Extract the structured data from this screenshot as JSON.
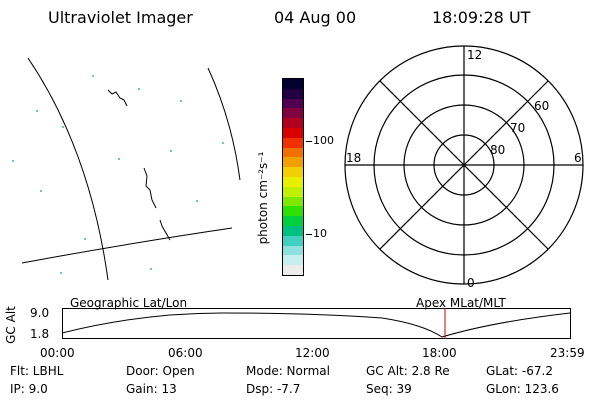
{
  "header": {
    "instrument": "Ultraviolet Imager",
    "date": "04 Aug 00",
    "time": "18:09:28 UT"
  },
  "colorbar": {
    "label": "photon cm⁻²s⁻¹",
    "tick_100": "100",
    "tick_10": "10",
    "colors": [
      "#000030",
      "#200040",
      "#500050",
      "#800040",
      "#b00020",
      "#d80000",
      "#f03000",
      "#f07000",
      "#f0a000",
      "#f0d000",
      "#e8f000",
      "#c0f000",
      "#80e800",
      "#30e000",
      "#00d040",
      "#00c080",
      "#40d0c0",
      "#90e0e0",
      "#c8eeee",
      "#ececec"
    ]
  },
  "polar": {
    "labels": {
      "top": "12",
      "bottom": "0",
      "left": "18",
      "right": "6"
    },
    "rings": [
      "60",
      "70",
      "80"
    ]
  },
  "timeline": {
    "ylabel": "GC Alt",
    "y_top": "9.0",
    "y_bottom": "1.8",
    "left_title": "Geographic Lat/Lon",
    "right_title": "Apex MLat/MLT",
    "ticks": [
      "00:00",
      "06:00",
      "12:00",
      "18:00",
      "23:59"
    ],
    "marker_color": "#cc0000"
  },
  "footer": {
    "filter": "Flt: LBHL",
    "ip": "IP:  9.0",
    "door": "Door: Open",
    "gain": "Gain: 13",
    "mode": "Mode: Normal",
    "dsp": "Dsp:    -7.7",
    "gcalt": "GC Alt: 2.8 Re",
    "seq": "Seq: 39",
    "glat": "GLat: -67.2",
    "glon": "GLon: 123.6"
  }
}
